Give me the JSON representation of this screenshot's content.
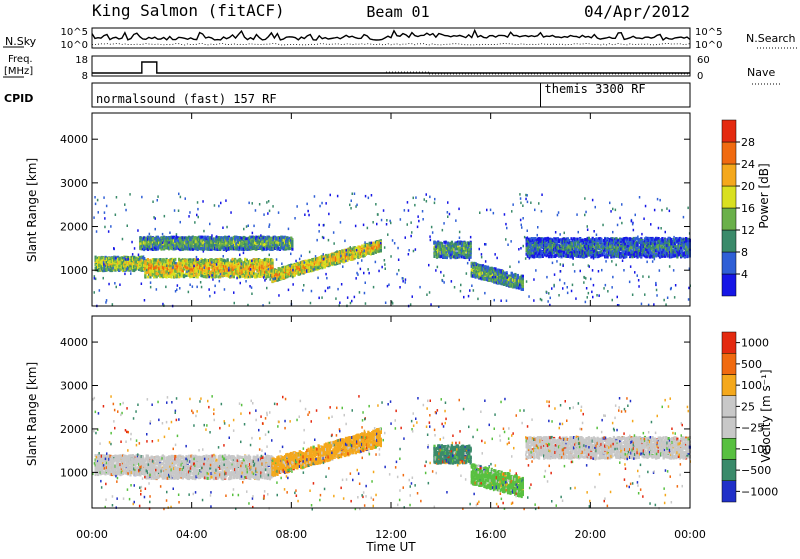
{
  "header": {
    "station": "King Salmon (fitACF)",
    "beam": "Beam 01",
    "date": "04/Apr/2012"
  },
  "summary": {
    "nsky_label": "N.Sky",
    "nsearch_label": "N.Search",
    "freq_label_top": "Freq.",
    "freq_label_unit": "[MHz]",
    "nave_label": "Nave",
    "cpid_label": "CPID",
    "nsky_ticks": [
      "10^5",
      "10^0"
    ],
    "nsearch_ticks": [
      "10^5",
      "10^0"
    ],
    "freq_ticks": [
      "18",
      "8"
    ],
    "nave_ticks": [
      "60",
      "0"
    ],
    "cpid_segments": [
      {
        "label": "normalsound (fast) 157 RF",
        "start_hour": 0
      },
      {
        "label": "themis 3300 RF",
        "start_hour": 18
      }
    ]
  },
  "chart_data": [
    {
      "type": "heatmap",
      "panel": "power",
      "xlabel": "",
      "ylabel": "Slant Range [km]",
      "xlim": [
        0,
        24
      ],
      "ylim": [
        180,
        4600
      ],
      "y_ticks": [
        "1000",
        "2000",
        "3000",
        "4000"
      ],
      "colorbar": {
        "label": "Power [dB]",
        "ticks": [
          "4",
          "8",
          "12",
          "16",
          "20",
          "24",
          "28"
        ],
        "colors": [
          "#1616e6",
          "#2f5fd6",
          "#3a8a6a",
          "#6ab04a",
          "#d9e020",
          "#f4a81c",
          "#f06a10",
          "#e42a10"
        ]
      },
      "regions": [
        {
          "x0": 0.1,
          "x1": 2.1,
          "y_center": 1180,
          "y_half": 130,
          "level": 4
        },
        {
          "x0": 2.1,
          "x1": 7.2,
          "y_center": 1080,
          "y_half": 170,
          "level": 5
        },
        {
          "x0": 1.9,
          "x1": 8.0,
          "y_center": 1650,
          "y_half": 120,
          "level": 3
        },
        {
          "x0": 7.2,
          "x1": 11.6,
          "y_center": 900,
          "y_half": 110,
          "level": 5,
          "slope": 160
        },
        {
          "x0": 13.7,
          "x1": 15.2,
          "y_center": 1500,
          "y_half": 150,
          "level": 3
        },
        {
          "x0": 15.2,
          "x1": 17.3,
          "y_center": 1050,
          "y_half": 130,
          "level": 3,
          "slope": -150
        },
        {
          "x0": 17.4,
          "x1": 24.0,
          "y_center": 1550,
          "y_half": 180,
          "level": 2
        }
      ]
    },
    {
      "type": "heatmap",
      "panel": "velocity",
      "xlabel": "Time UT",
      "ylabel": "Slant Range [km]",
      "xlim": [
        0,
        24
      ],
      "ylim": [
        180,
        4600
      ],
      "x_ticks": [
        "00:00",
        "04:00",
        "08:00",
        "12:00",
        "16:00",
        "20:00",
        "00:00"
      ],
      "y_ticks": [
        "1000",
        "2000",
        "3000",
        "4000"
      ],
      "colorbar": {
        "label": "Velocity [m s⁻¹]",
        "ticks": [
          "1000",
          "500",
          "100",
          "25",
          "−25",
          "−100",
          "−500",
          "−1000"
        ],
        "colors": [
          "#2030c8",
          "#3a8a6a",
          "#58c040",
          "#c8c8c8",
          "#c8c8c8",
          "#f4a81c",
          "#f06a10",
          "#e42a10"
        ]
      },
      "regions": [
        {
          "x0": 0.1,
          "x1": 2.1,
          "y_center": 1200,
          "y_half": 190,
          "color": "#c8c8c8"
        },
        {
          "x0": 2.1,
          "x1": 7.2,
          "y_center": 1150,
          "y_half": 220,
          "color": "#c8c8c8"
        },
        {
          "x0": 7.2,
          "x1": 11.6,
          "y_center": 1150,
          "y_half": 170,
          "color": "#f4a81c",
          "slope": 160
        },
        {
          "x0": 13.7,
          "x1": 15.2,
          "y_center": 1450,
          "y_half": 170,
          "color": "#3a8a6a"
        },
        {
          "x0": 15.2,
          "x1": 17.3,
          "y_center": 1000,
          "y_half": 190,
          "color": "#58c040",
          "slope": -150
        },
        {
          "x0": 17.4,
          "x1": 24.0,
          "y_center": 1600,
          "y_half": 200,
          "color": "#c8c8c8"
        }
      ]
    }
  ]
}
